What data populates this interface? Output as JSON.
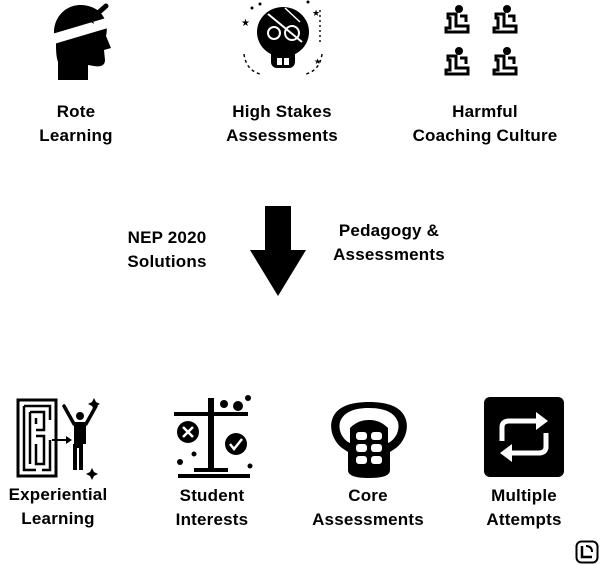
{
  "problems": [
    {
      "icon": "head-arrow-icon",
      "line1": "Rote",
      "line2": "Learning"
    },
    {
      "icon": "cracked-skull-icon",
      "line1": "High Stakes",
      "line2": "Assessments"
    },
    {
      "icon": "coaching-grid-icon",
      "line1": "Harmful",
      "line2": "Coaching Culture"
    }
  ],
  "center": {
    "left_line1": "NEP 2020",
    "left_line2": "Solutions",
    "right_line1": "Pedagogy &",
    "right_line2": "Assessments",
    "arrow_icon": "down-arrow-icon"
  },
  "solutions": [
    {
      "icon": "maze-person-icon",
      "line1": "Experiential",
      "line2": "Learning"
    },
    {
      "icon": "balance-scale-icon",
      "line1": "Student",
      "line2": "Interests"
    },
    {
      "icon": "torso-core-icon",
      "line1": "Core",
      "line2": "Assessments"
    },
    {
      "icon": "repeat-arrows-icon",
      "line1": "Multiple",
      "line2": "Attempts"
    }
  ],
  "logo_icon": "corner-logo-icon",
  "colors": {
    "ink": "#000000",
    "background": "#ffffff"
  }
}
